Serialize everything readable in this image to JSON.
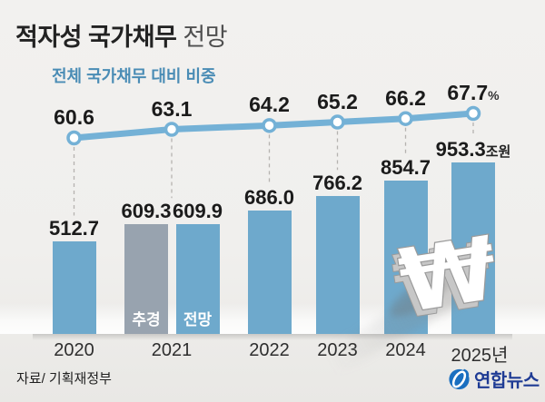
{
  "title": {
    "main": "적자성 국가채무",
    "suffix": " 전망"
  },
  "legend": {
    "line_label": "전체 국가채무 대비 비중"
  },
  "footer": {
    "source": "자료/ 기획재정부",
    "logo_text": "연합뉴스"
  },
  "won_symbol": "₩",
  "colors": {
    "bar_blue": "#6ea9cc",
    "bar_gray": "#98a3af",
    "line_blue": "#74b1d6",
    "legend_blue": "#4a8cb5",
    "logo_icon_blue": "#1a6fc0",
    "logo_text_navy": "#1e3b94",
    "dashed_gray": "#b5b3b0"
  },
  "chart_data": {
    "type": "bar+line",
    "title": "적자성 국가채무 전망",
    "bar_unit": "조원",
    "line_unit": "%",
    "categories": [
      "2020",
      "2021",
      "2022",
      "2023",
      "2024",
      "2025년"
    ],
    "line_series": {
      "name": "전체 국가채무 대비 비중",
      "values": [
        60.6,
        63.1,
        64.2,
        65.2,
        66.2,
        67.7
      ],
      "last_suffix": "%"
    },
    "groups": [
      {
        "category": "2020",
        "bars": [
          {
            "value": 512.7,
            "style": "blue"
          }
        ]
      },
      {
        "category": "2021",
        "bars": [
          {
            "value": 609.3,
            "style": "gray",
            "tag": "추경"
          },
          {
            "value": 609.9,
            "style": "blue",
            "tag": "전망"
          }
        ]
      },
      {
        "category": "2022",
        "bars": [
          {
            "value": 686.0,
            "style": "blue"
          }
        ]
      },
      {
        "category": "2023",
        "bars": [
          {
            "value": 766.2,
            "style": "blue"
          }
        ]
      },
      {
        "category": "2024",
        "bars": [
          {
            "value": 854.7,
            "style": "blue"
          }
        ]
      },
      {
        "category": "2025년",
        "bars": [
          {
            "value": 953.3,
            "style": "blue",
            "value_suffix": "조원"
          }
        ]
      }
    ],
    "bar_ylim": [
      0,
      1000
    ],
    "grid": false,
    "legend_position": "top-left"
  }
}
